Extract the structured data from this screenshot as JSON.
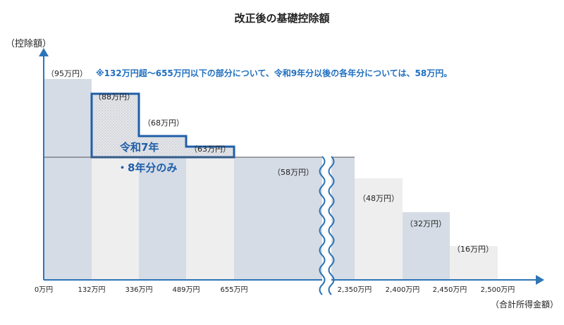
{
  "chart_data": {
    "type": "bar",
    "title": "改正後の基礎控除額",
    "ylabel": "（控除額）",
    "xlabel": "（合計所得金額）",
    "note": "※132万円超～655万円以下の部分について、令和9年分以後の各年分については、58万円。",
    "special_label_line1": "令和7年",
    "special_label_line2": "・8年分のみ",
    "x_ticks": [
      "0万円",
      "132万円",
      "336万円",
      "489万円",
      "655万円",
      "2,350万円",
      "2,400万円",
      "2,450万円",
      "2,500万円"
    ],
    "y_unit": "万円",
    "reference_line": 58,
    "ylim": [
      0,
      100
    ],
    "bars": [
      {
        "from": "0万円",
        "to": "132万円",
        "value": 95,
        "label": "（95万円）"
      },
      {
        "from": "132万円",
        "to": "655万円",
        "value": 58,
        "label": "（58万円）"
      },
      {
        "from": "655万円",
        "to": "2,350万円",
        "value": 58,
        "label": "（58万円）"
      },
      {
        "from": "2,350万円",
        "to": "2,400万円",
        "value": 48,
        "label": "（48万円）"
      },
      {
        "from": "2,400万円",
        "to": "2,450万円",
        "value": 32,
        "label": "（32万円）"
      },
      {
        "from": "2,450万円",
        "to": "2,500万円",
        "value": 16,
        "label": "（16万円）"
      }
    ],
    "special_steps": [
      {
        "from": "132万円",
        "to": "336万円",
        "value": 88,
        "label": "（88万円）"
      },
      {
        "from": "336万円",
        "to": "489万円",
        "value": 68,
        "label": "（68万円）"
      },
      {
        "from": "489万円",
        "to": "655万円",
        "value": 63,
        "label": "（63万円）"
      }
    ],
    "colors": {
      "axis": "#2e75b6",
      "accent": "#1f5ea8",
      "bar_dark": "#d5dce6",
      "bar_light": "#eeeeee",
      "hatch": "#cfd2d8",
      "text": "#222222"
    }
  }
}
